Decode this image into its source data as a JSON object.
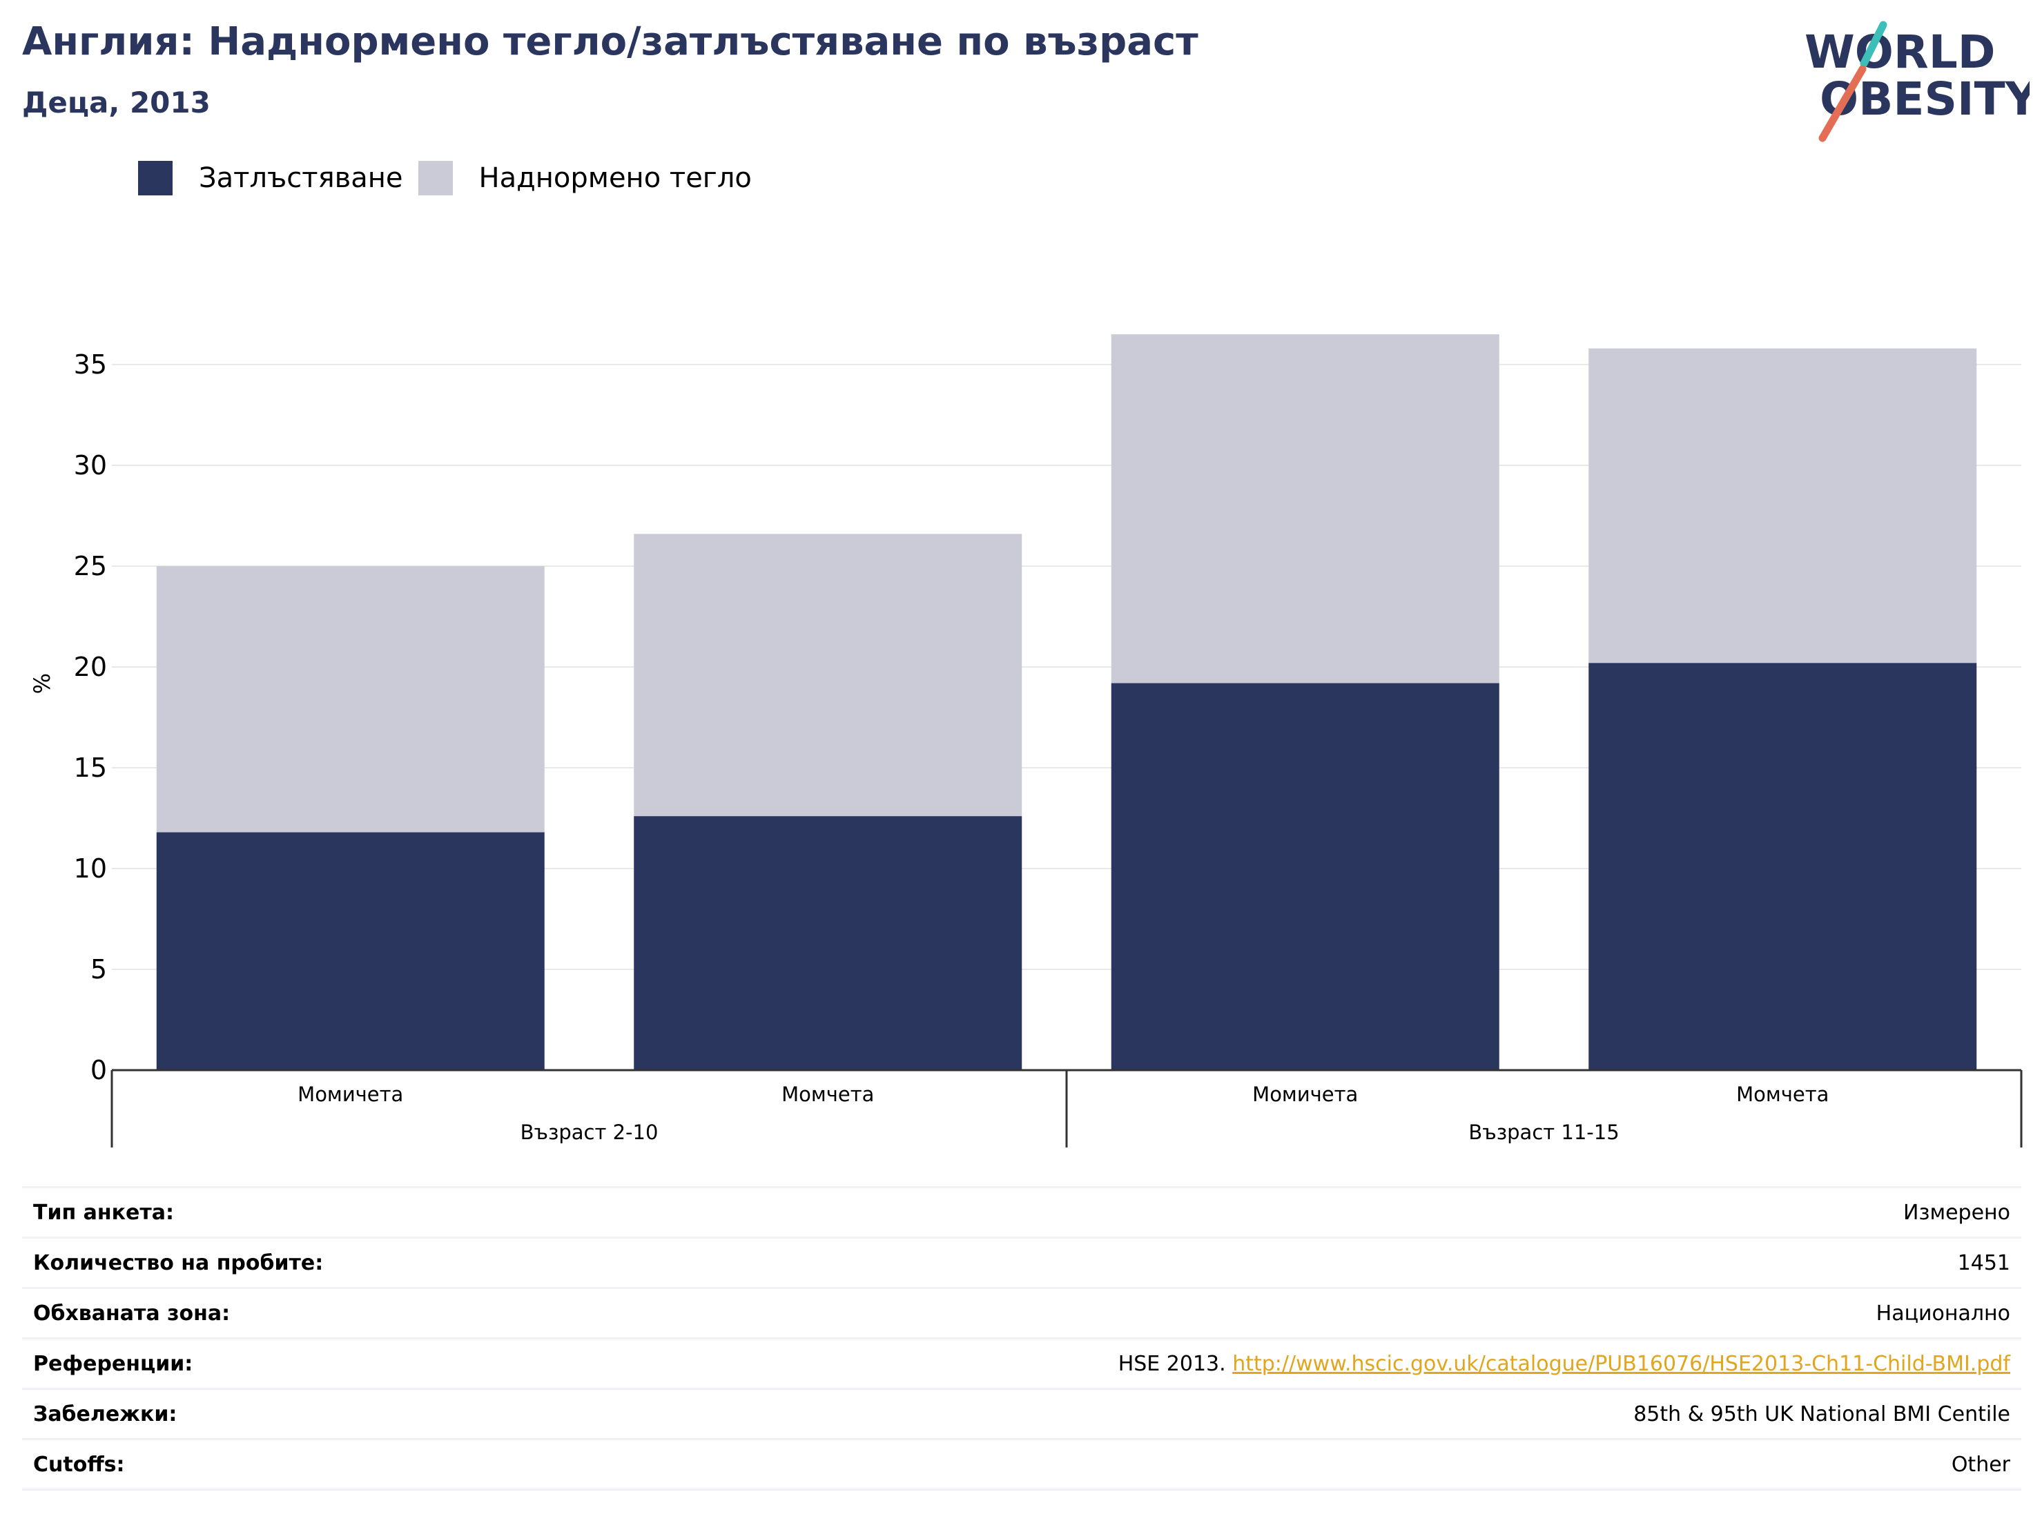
{
  "header": {
    "title": "Англия: Наднормено тегло/затлъстяване по възраст",
    "subtitle": "Деца, 2013"
  },
  "logo": {
    "line1": "WORLD",
    "line2": "OBESITY",
    "text_color": "#2b365f",
    "slash_colors": [
      "#3bbfb8",
      "#e36d55"
    ]
  },
  "colors": {
    "obesity": "#2b365f",
    "overweight": "#cacbd7",
    "grid": "#e8e8e8",
    "axis": "#333333",
    "link": "#e2a51e"
  },
  "chart_data": {
    "type": "bar",
    "stacked": true,
    "ylabel": "%",
    "ylim": [
      0,
      37
    ],
    "yticks": [
      0,
      5,
      10,
      15,
      20,
      25,
      30,
      35
    ],
    "grid": true,
    "legend_position": "top-left",
    "categories": [
      "Момичета",
      "Момчета",
      "Момичета",
      "Момчета"
    ],
    "groups": [
      {
        "label": "Възраст 2-10",
        "category_indices": [
          0,
          1
        ]
      },
      {
        "label": "Възраст 11-15",
        "category_indices": [
          2,
          3
        ]
      }
    ],
    "series": [
      {
        "name": "Затлъстяване",
        "color": "#2b365f",
        "values": [
          11.8,
          12.6,
          19.2,
          20.2
        ]
      },
      {
        "name": "Наднормено тегло",
        "color": "#cacbd7",
        "values": [
          13.2,
          14.0,
          17.3,
          15.6
        ]
      }
    ]
  },
  "info": {
    "rows": [
      {
        "label": "Тип анкета:",
        "value": "Измерено"
      },
      {
        "label": "Количество на пробите:",
        "value": "1451"
      },
      {
        "label": "Обхваната зона:",
        "value": "Национално"
      },
      {
        "label": "Референции:",
        "value_prefix": "HSE 2013.",
        "link": "http://www.hscic.gov.uk/catalogue/PUB16076/HSE2013-Ch11-Child-BMI.pdf"
      },
      {
        "label": "Забележки:",
        "value": "85th & 95th UK National BMI Centile"
      },
      {
        "label": "Cutoffs:",
        "value": "Other"
      }
    ]
  }
}
